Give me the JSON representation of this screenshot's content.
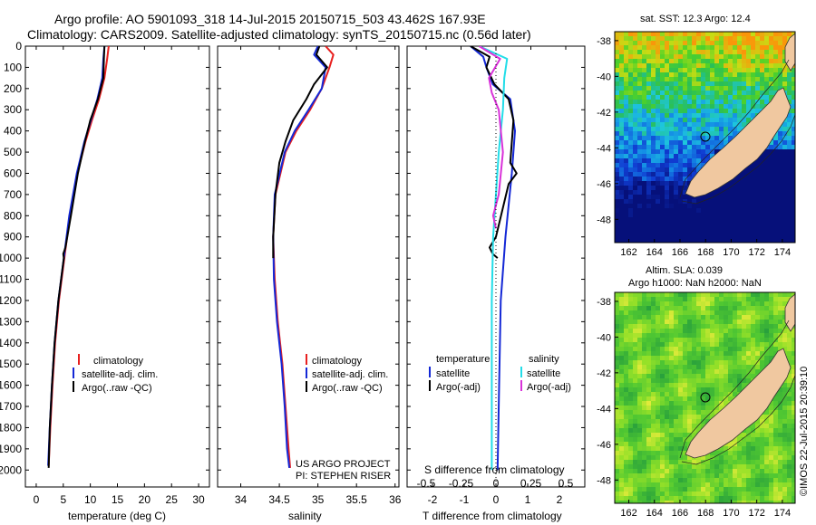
{
  "title": {
    "line1": "Argo profile: AO 5901093_318 14-Jul-2015 20150715_503 43.462S 167.93E",
    "line2": "Climatology: CARS2009. Satellite-adjusted climatology: synTS_20150715.nc (0.56d later)"
  },
  "colors": {
    "climatology": "#e8201f",
    "satellite": "#1428d6",
    "argo": "#000000",
    "sal_satellite": "#22dde8",
    "sal_argo": "#d932d9",
    "land": "#f0c8a0",
    "deep_ocean": "#06107a"
  },
  "depth_ticks": [
    0,
    100,
    200,
    300,
    400,
    500,
    600,
    700,
    800,
    900,
    1000,
    1100,
    1200,
    1300,
    1400,
    1500,
    1600,
    1700,
    1800,
    1900,
    2000
  ],
  "chart_data": [
    {
      "type": "line",
      "name": "temperature_profile",
      "xlabel": "temperature (deg C)",
      "x_ticks": [
        "0",
        "5",
        "10",
        "15",
        "20",
        "25",
        "30"
      ],
      "xlim": [
        -2,
        32
      ],
      "ylim": [
        0,
        2080
      ],
      "y_reversed": true,
      "legend": [
        "climatology",
        "satellite-adj. clim.",
        "Argo(..raw -QC)"
      ],
      "legend_position": "lower-right",
      "series": [
        {
          "name": "climatology",
          "depth": [
            0,
            60,
            150,
            250,
            350,
            450,
            600,
            800,
            1000,
            1200,
            1400,
            1600,
            1800,
            1980
          ],
          "values": [
            13.4,
            13.1,
            12.6,
            11.6,
            10.3,
            9.1,
            7.6,
            6.2,
            5.2,
            4.2,
            3.5,
            3.0,
            2.6,
            2.3
          ]
        },
        {
          "name": "satellite-adj. clim.",
          "depth": [
            0,
            60,
            150,
            250,
            350,
            450,
            600,
            800,
            1000,
            1200,
            1400,
            1600,
            1800,
            1980
          ],
          "values": [
            12.6,
            12.4,
            12.2,
            11.3,
            10.1,
            8.9,
            7.5,
            6.1,
            5.1,
            4.1,
            3.4,
            2.9,
            2.5,
            2.2
          ]
        },
        {
          "name": "Argo(..raw -QC)",
          "depth": [
            0,
            60,
            150,
            250,
            350,
            450,
            600,
            800,
            950,
            980,
            1000,
            1200,
            1400,
            1600,
            1800,
            1990
          ],
          "values": [
            12.6,
            12.5,
            12.4,
            11.4,
            10.0,
            9.0,
            7.7,
            6.4,
            5.4,
            5.0,
            5.1,
            4.1,
            3.4,
            2.9,
            2.5,
            2.3
          ]
        }
      ]
    },
    {
      "type": "line",
      "name": "salinity_profile",
      "xlabel": "salinity",
      "x_ticks": [
        "34",
        "34.5",
        "35",
        "35.5",
        "36"
      ],
      "xlim": [
        33.7,
        36.05
      ],
      "ylim": [
        0,
        2080
      ],
      "y_reversed": true,
      "legend": [
        "climatology",
        "satellite-adj. clim.",
        "Argo(..raw -QC)"
      ],
      "legend_position": "lower-right",
      "series": [
        {
          "name": "climatology",
          "depth": [
            0,
            40,
            100,
            200,
            300,
            400,
            500,
            700,
            900,
            1100,
            1300,
            1500,
            1700,
            1900,
            1990
          ],
          "values": [
            35.1,
            35.2,
            35.15,
            35.05,
            34.9,
            34.72,
            34.58,
            34.45,
            34.42,
            34.44,
            34.48,
            34.54,
            34.58,
            34.62,
            34.64
          ]
        },
        {
          "name": "satellite-adj. clim.",
          "depth": [
            0,
            40,
            100,
            200,
            300,
            400,
            500,
            700,
            900,
            1100,
            1300,
            1500,
            1700,
            1900,
            1990
          ],
          "values": [
            35.0,
            34.95,
            35.1,
            35.05,
            34.88,
            34.7,
            34.57,
            34.44,
            34.42,
            34.43,
            34.47,
            34.53,
            34.57,
            34.6,
            34.63
          ]
        },
        {
          "name": "Argo(..raw -QC)",
          "depth": [
            0,
            40,
            100,
            180,
            250,
            350,
            450,
            550,
            700,
            900,
            1000
          ],
          "values": [
            35.02,
            34.98,
            35.12,
            34.95,
            34.85,
            34.68,
            34.58,
            34.5,
            34.45,
            34.42,
            34.42
          ]
        }
      ]
    },
    {
      "type": "line",
      "name": "difference_profile",
      "xlabel": "T difference from climatology",
      "xlabel_top": "S difference from climatology",
      "x_ticks": [
        "-2",
        "-1",
        "0",
        "1",
        "2"
      ],
      "x_ticks_top": [
        "-0.5",
        "-0.25",
        "0",
        "0.25",
        "0.5"
      ],
      "xlim": [
        -2.8,
        2.8
      ],
      "ylim": [
        0,
        2080
      ],
      "y_reversed": true,
      "legend": {
        "temperature_heading": "temperature",
        "salinity_heading": "salinity",
        "items": [
          "satellite",
          "Argo(-adj)",
          "satellite",
          "Argo(-adj)"
        ]
      },
      "legend_position": "lower-center",
      "series": [
        {
          "name": "temperature satellite",
          "depth": [
            0,
            50,
            100,
            180,
            250,
            400,
            600,
            900,
            1200,
            1600,
            2000
          ],
          "values": [
            -0.8,
            -0.4,
            -0.3,
            -0.1,
            0.45,
            0.6,
            0.5,
            0.3,
            0.15,
            0.1,
            0.05
          ]
        },
        {
          "name": "temperature Argo(-adj)",
          "depth": [
            0,
            50,
            100,
            180,
            250,
            350,
            550,
            600,
            650,
            900,
            950,
            980,
            1000
          ],
          "values": [
            -0.8,
            -0.2,
            -0.3,
            -0.05,
            0.4,
            0.55,
            0.45,
            0.65,
            0.4,
            0.0,
            -0.2,
            -0.1,
            0.05
          ]
        },
        {
          "name": "salinity satellite",
          "depth": [
            0,
            60,
            150,
            300,
            500,
            700,
            900,
            1200,
            1600,
            2000
          ],
          "values": [
            -0.12,
            0.08,
            0.06,
            0.05,
            0.02,
            0.0,
            -0.02,
            -0.03,
            -0.03,
            -0.03
          ]
        },
        {
          "name": "salinity Argo(-adj)",
          "depth": [
            0,
            60,
            150,
            220,
            300,
            500,
            700,
            800,
            860
          ],
          "values": [
            -0.12,
            0.03,
            -0.05,
            -0.03,
            0.02,
            0.05,
            0.02,
            -0.02,
            0.0
          ]
        }
      ]
    }
  ],
  "sst_map": {
    "title": "sat. SST: 12.3 Argo: 12.4",
    "x_ticks": [
      "162",
      "164",
      "166",
      "168",
      "170",
      "172",
      "174"
    ],
    "y_ticks": [
      "-38",
      "-40",
      "-42",
      "-44",
      "-46",
      "-48"
    ]
  },
  "sla_map": {
    "title_line1": "Altim. SLA: 0.039",
    "title_line2": "Argo h1000: NaN h2000: NaN",
    "x_ticks": [
      "162",
      "164",
      "166",
      "168",
      "170",
      "172",
      "174"
    ],
    "y_ticks": [
      "-38",
      "-40",
      "-42",
      "-44",
      "-46",
      "-48"
    ]
  },
  "credit": "©IMOS 22-Jul-2015 20:39:10",
  "footer": {
    "project": "US ARGO PROJECT",
    "pi": "PI: STEPHEN RISER"
  }
}
